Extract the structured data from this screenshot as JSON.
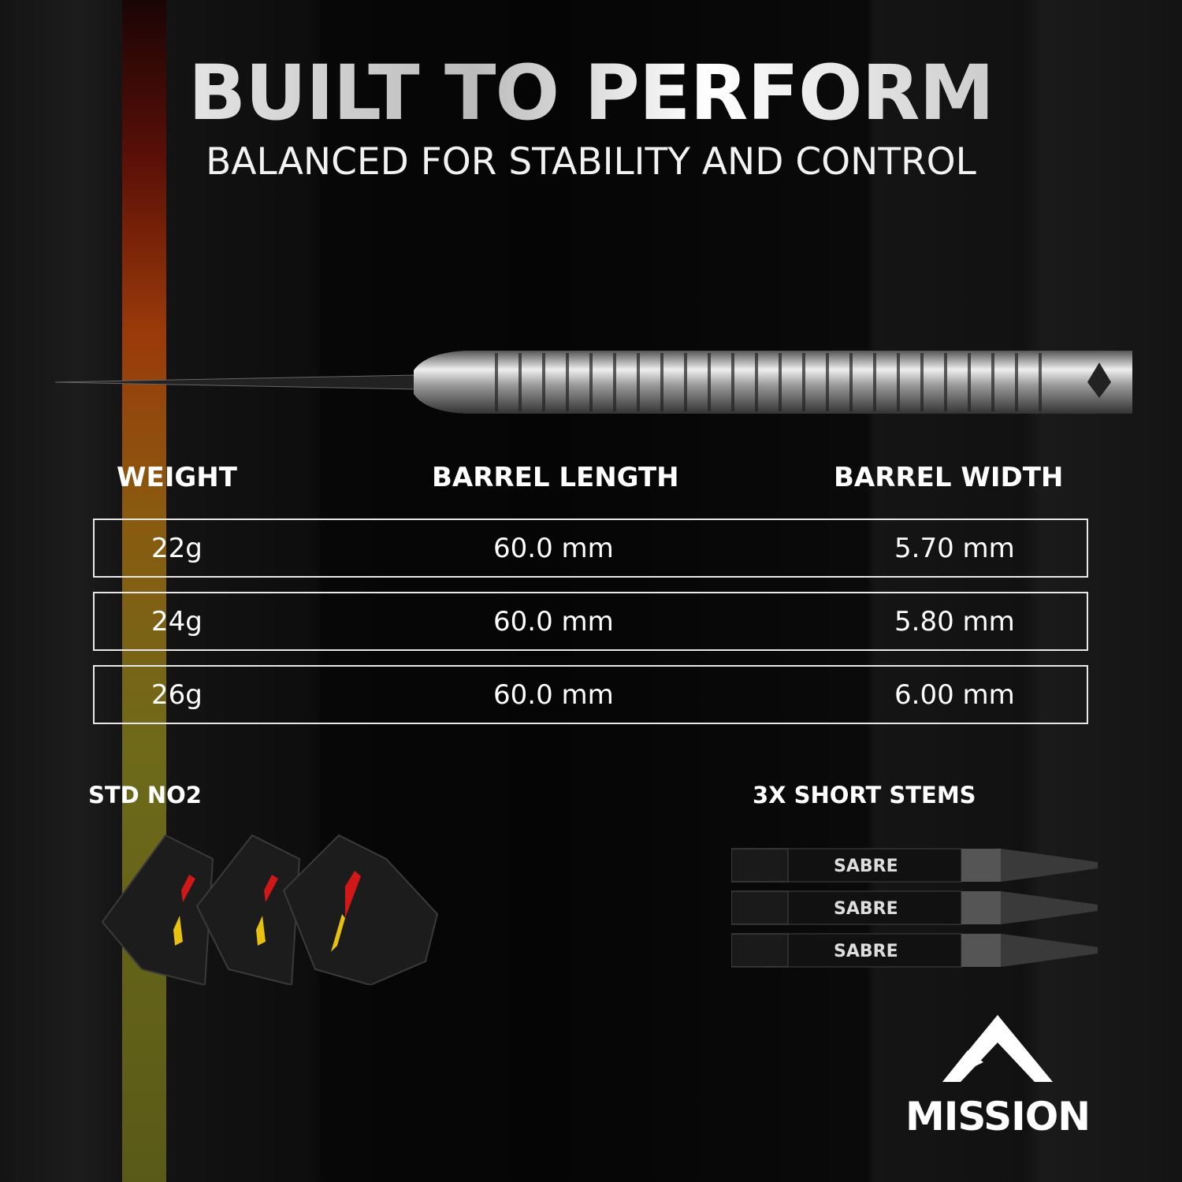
{
  "header": {
    "title": "BUILT TO PERFORM",
    "subtitle": "BALANCED FOR STABILITY AND CONTROL"
  },
  "specs": {
    "columns": [
      "WEIGHT",
      "BARREL LENGTH",
      "BARREL WIDTH"
    ],
    "rows": [
      {
        "weight": "22g",
        "length": "60.0 mm",
        "width": "5.70 mm"
      },
      {
        "weight": "24g",
        "length": "60.0 mm",
        "width": "5.80 mm"
      },
      {
        "weight": "26g",
        "length": "60.0 mm",
        "width": "6.00 mm"
      }
    ]
  },
  "accessories": {
    "flights_label": "STD NO2",
    "stems_label": "3X SHORT STEMS",
    "stem_brand": "SABRE"
  },
  "brand": {
    "name": "MISSION"
  },
  "colors": {
    "stripe_top": "#5a0f08",
    "stripe_mid": "#9a3a0a",
    "stripe_bottom": "#5a5a18",
    "flight_red": "#d01818",
    "flight_yellow": "#e8c010"
  }
}
